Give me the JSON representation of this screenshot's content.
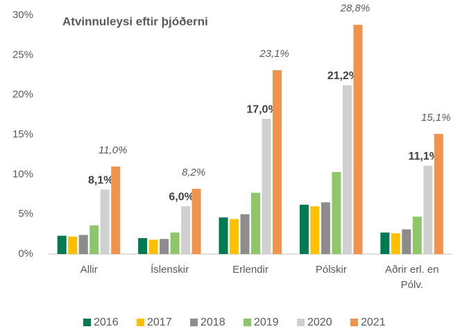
{
  "chart_data": {
    "type": "bar",
    "title": "Atvinnuleysi eftir þjóðerni",
    "categories": [
      "Allir",
      "Íslenskir",
      "Erlendir",
      "Pólskir",
      "Aðrir erl. en Pólv."
    ],
    "series": [
      {
        "name": "2016",
        "color": "#007a53",
        "values": [
          2.3,
          2.0,
          4.6,
          6.2,
          2.7
        ]
      },
      {
        "name": "2017",
        "color": "#ffc000",
        "values": [
          2.2,
          1.8,
          4.4,
          6.0,
          2.6
        ]
      },
      {
        "name": "2018",
        "color": "#8c8c8c",
        "values": [
          2.4,
          1.9,
          5.0,
          6.5,
          3.1
        ]
      },
      {
        "name": "2019",
        "color": "#8ec66a",
        "values": [
          3.6,
          2.7,
          7.7,
          10.3,
          4.7
        ]
      },
      {
        "name": "2020",
        "color": "#d0d0d0",
        "values": [
          8.1,
          6.0,
          17.0,
          21.2,
          11.1
        ],
        "value_labels": [
          "8,1%",
          "6,0%",
          "17,0%",
          "21,2%",
          "11,1%"
        ]
      },
      {
        "name": "2021",
        "color": "#f0944d",
        "values": [
          11.0,
          8.2,
          23.1,
          28.8,
          15.1
        ],
        "value_labels": [
          "11,0%",
          "8,2%",
          "23,1%",
          "28,8%",
          "15,1%"
        ]
      }
    ],
    "ylim": [
      0,
      30
    ],
    "yticks": [
      {
        "value": 0,
        "label": "0%"
      },
      {
        "value": 5,
        "label": "5%"
      },
      {
        "value": 10,
        "label": "10%"
      },
      {
        "value": 15,
        "label": "15%"
      },
      {
        "value": 20,
        "label": "20%"
      },
      {
        "value": 25,
        "label": "25%"
      },
      {
        "value": 30,
        "label": "30%"
      }
    ],
    "grid": false,
    "legend": "bottom"
  }
}
